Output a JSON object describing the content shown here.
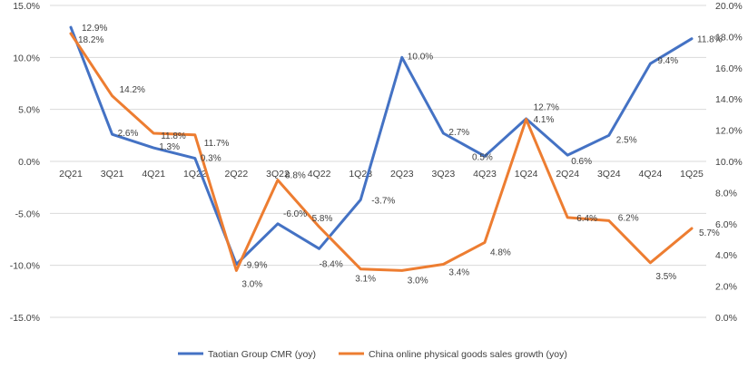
{
  "chart_data": {
    "type": "line",
    "categories": [
      "2Q21",
      "3Q21",
      "4Q21",
      "1Q22",
      "2Q22",
      "3Q22",
      "4Q22",
      "1Q23",
      "2Q23",
      "3Q23",
      "4Q23",
      "1Q24",
      "2Q24",
      "3Q24",
      "4Q24",
      "1Q25"
    ],
    "series": [
      {
        "name": "Taotian Group CMR (yoy)",
        "axis": "left",
        "color": "#4472C4",
        "values": [
          12.9,
          2.6,
          1.3,
          0.3,
          -9.9,
          -6.0,
          -8.4,
          -3.7,
          10.0,
          2.7,
          0.5,
          4.1,
          0.6,
          2.5,
          9.4,
          11.8
        ],
        "labels": [
          "12.9%",
          "2.6%",
          "1.3%",
          "0.3%",
          "-9.9%",
          "-6.0%",
          "-8.4%",
          "-3.7%",
          "10.0%",
          "2.7%",
          "0.5%",
          "4.1%",
          "0.6%",
          "2.5%",
          "9.4%",
          "11.8%"
        ]
      },
      {
        "name": "China online physical goods sales growth  (yoy)",
        "axis": "right",
        "color": "#ED7D31",
        "values": [
          18.2,
          14.2,
          11.8,
          11.7,
          3.0,
          8.8,
          5.8,
          3.1,
          3.0,
          3.4,
          4.8,
          12.7,
          6.4,
          6.2,
          3.5,
          5.7
        ],
        "labels": [
          "18.2%",
          "14.2%",
          "11.8%",
          "11.7%",
          "3.0%",
          "8.8%",
          "5.8%",
          "3.1%",
          "3.0%",
          "3.4%",
          "4.8%",
          "12.7%",
          "6.4%",
          "6.2%",
          "3.5%",
          "5.7%"
        ]
      }
    ],
    "y_left": {
      "range": [
        -15,
        15
      ],
      "ticks": [
        15,
        10,
        5,
        0,
        -5,
        -10,
        -15
      ],
      "tick_labels": [
        "15.0%",
        "10.0%",
        "5.0%",
        "0.0%",
        "-5.0%",
        "-10.0%",
        "-15.0%"
      ]
    },
    "y_right": {
      "range": [
        0,
        20
      ],
      "ticks": [
        20,
        18,
        16,
        14,
        12,
        10,
        8,
        6,
        4,
        2,
        0
      ],
      "tick_labels": [
        "20.0%",
        "18.0%",
        "16.0%",
        "14.0%",
        "12.0%",
        "10.0%",
        "8.0%",
        "6.0%",
        "4.0%",
        "2.0%",
        "0.0%"
      ]
    },
    "gridlines": true,
    "legend_position": "bottom"
  }
}
